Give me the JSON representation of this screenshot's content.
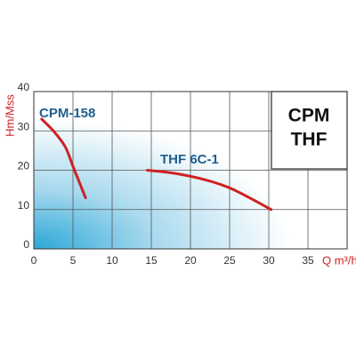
{
  "chart_data": {
    "type": "line",
    "y_label": "Hm/Mss",
    "x_label": "Q m³/h",
    "box_text": [
      "CPM",
      "THF"
    ],
    "series": [
      {
        "name": "CPM-158",
        "color": "#cc2222",
        "x": [
          1,
          2.5,
          4,
          5,
          6,
          6.6
        ],
        "values": [
          33,
          30,
          26,
          21,
          16,
          13
        ]
      },
      {
        "name": "THF 6C-1",
        "color": "#cc2222",
        "x": [
          14.5,
          18,
          22,
          25,
          28,
          30.3
        ],
        "values": [
          20,
          19.2,
          17.5,
          15.5,
          12.5,
          10
        ]
      }
    ],
    "label_color": "#1f5f8f",
    "xlim": [
      0,
      40
    ],
    "xticks": [
      0,
      5,
      10,
      15,
      20,
      25,
      30,
      35
    ],
    "ylim": [
      0,
      40
    ],
    "yticks": [
      0,
      10,
      20,
      30,
      40
    ],
    "grid": true
  }
}
